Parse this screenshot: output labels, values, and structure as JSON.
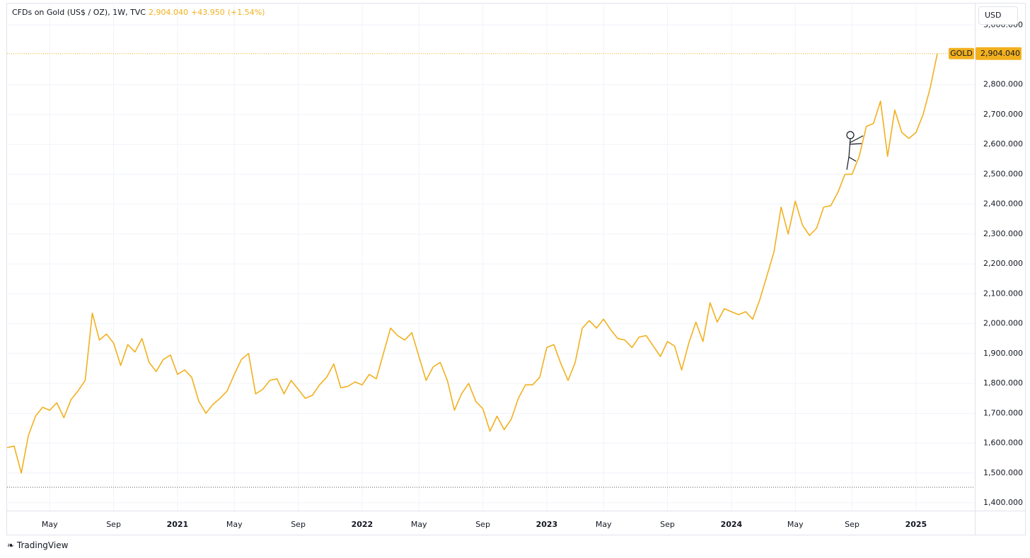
{
  "header": {
    "title": "CFDs on Gold (US$ / OZ), 1W, TVC",
    "price": "2,904.040",
    "change": "+43.950",
    "change_pct": "(+1.54%)",
    "currency": "USD",
    "symbol": "GOLD"
  },
  "footer": {
    "brand": "TradingView"
  },
  "chart_data": {
    "type": "line",
    "color": "#f2b01e",
    "grid": true,
    "last_value_line": true,
    "base_line": 1452,
    "categories": [
      null,
      null,
      null,
      null,
      null,
      null,
      "May",
      null,
      null,
      null,
      null,
      null,
      null,
      null,
      null,
      "Sep",
      null,
      null,
      null,
      null,
      null,
      null,
      null,
      null,
      "2021",
      null,
      null,
      null,
      null,
      null,
      null,
      null,
      "May",
      null,
      null,
      null,
      null,
      null,
      null,
      null,
      null,
      "Sep",
      null,
      null,
      null,
      null,
      null,
      null,
      null,
      null,
      "2022",
      null,
      null,
      null,
      null,
      null,
      null,
      null,
      "May",
      null,
      null,
      null,
      null,
      null,
      null,
      null,
      null,
      "Sep",
      null,
      null,
      null,
      null,
      null,
      null,
      null,
      null,
      "2023",
      null,
      null,
      null,
      null,
      null,
      null,
      null,
      "May",
      null,
      null,
      null,
      null,
      null,
      null,
      null,
      null,
      "Sep",
      null,
      null,
      null,
      null,
      null,
      null,
      null,
      null,
      "2024",
      null,
      null,
      null,
      null,
      null,
      null,
      null,
      null,
      "May",
      null,
      null,
      null,
      null,
      null,
      null,
      null,
      "Sep",
      null,
      null,
      null,
      null,
      null,
      null,
      null,
      null,
      "2025",
      null,
      null,
      null
    ],
    "values": [
      1585,
      1590,
      1500,
      1625,
      1690,
      1720,
      1710,
      1735,
      1685,
      1745,
      1775,
      1810,
      2035,
      1945,
      1965,
      1935,
      1860,
      1930,
      1905,
      1950,
      1870,
      1840,
      1880,
      1895,
      1830,
      1845,
      1820,
      1740,
      1700,
      1730,
      1750,
      1775,
      1830,
      1880,
      1900,
      1765,
      1780,
      1810,
      1815,
      1765,
      1810,
      1780,
      1750,
      1760,
      1795,
      1820,
      1865,
      1785,
      1790,
      1805,
      1795,
      1830,
      1815,
      1900,
      1985,
      1960,
      1945,
      1970,
      1890,
      1810,
      1855,
      1870,
      1810,
      1710,
      1765,
      1800,
      1740,
      1715,
      1640,
      1690,
      1645,
      1680,
      1750,
      1795,
      1795,
      1820,
      1920,
      1930,
      1865,
      1810,
      1870,
      1985,
      2010,
      1985,
      2015,
      1980,
      1950,
      1945,
      1920,
      1955,
      1960,
      1925,
      1890,
      1940,
      1925,
      1845,
      1935,
      2005,
      1940,
      2070,
      2005,
      2050,
      2040,
      2030,
      2040,
      2015,
      2080,
      2160,
      2240,
      2390,
      2300,
      2410,
      2330,
      2295,
      2320,
      2390,
      2395,
      2440,
      2500,
      2500,
      2560,
      2660,
      2670,
      2745,
      2560,
      2715,
      2640,
      2620,
      2640,
      2700,
      2790,
      2904.04
    ],
    "ylim": [
      1374,
      3074
    ],
    "yticks": [
      {
        "value": 1400,
        "label": "1,400.000"
      },
      {
        "value": 1500,
        "label": "1,500.000"
      },
      {
        "value": 1600,
        "label": "1,600.000"
      },
      {
        "value": 1700,
        "label": "1,700.000"
      },
      {
        "value": 1800,
        "label": "1,800.000"
      },
      {
        "value": 1900,
        "label": "1,900.000"
      },
      {
        "value": 2000,
        "label": "2,000.000"
      },
      {
        "value": 2100,
        "label": "2,100.000"
      },
      {
        "value": 2200,
        "label": "2,200.000"
      },
      {
        "value": 2300,
        "label": "2,300.000"
      },
      {
        "value": 2400,
        "label": "2,400.000"
      },
      {
        "value": 2500,
        "label": "2,500.000"
      },
      {
        "value": 2600,
        "label": "2,600.000"
      },
      {
        "value": 2700,
        "label": "2,700.000"
      },
      {
        "value": 2800,
        "label": "2,800.000"
      },
      {
        "value": 3000,
        "label": "3,000.000"
      }
    ]
  }
}
